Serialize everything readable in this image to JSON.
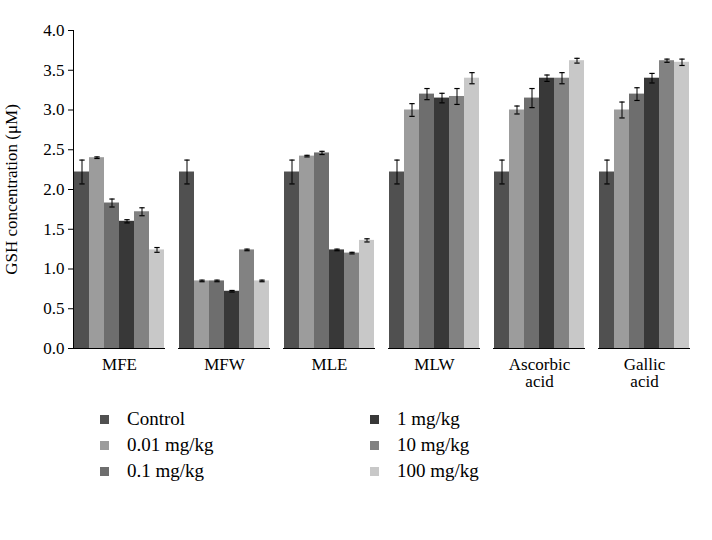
{
  "chart_data": {
    "type": "bar",
    "ylabel": "GSH concentration (μM)",
    "categories": [
      "MFE",
      "MFW",
      "MLE",
      "MLW",
      "Ascorbic acid",
      "Gallic acid"
    ],
    "series": [
      {
        "name": "Control",
        "color": "#505050",
        "values": [
          2.22,
          2.22,
          2.22,
          2.22,
          2.22,
          2.22
        ],
        "errors": [
          0.15,
          0.15,
          0.15,
          0.15,
          0.15,
          0.15
        ]
      },
      {
        "name": "0.01 mg/kg",
        "color": "#9c9c9c",
        "values": [
          2.4,
          0.85,
          2.42,
          3.0,
          3.0,
          3.0
        ],
        "errors": [
          0.01,
          0.01,
          0.01,
          0.08,
          0.05,
          0.1
        ]
      },
      {
        "name": "0.1 mg/kg",
        "color": "#6e6e6e",
        "values": [
          1.83,
          0.85,
          2.46,
          3.2,
          3.15,
          3.2
        ],
        "errors": [
          0.05,
          0.01,
          0.02,
          0.07,
          0.12,
          0.08
        ]
      },
      {
        "name": "1 mg/kg",
        "color": "#383838",
        "values": [
          1.6,
          0.72,
          1.24,
          3.15,
          3.4,
          3.4
        ],
        "errors": [
          0.02,
          0.01,
          0.01,
          0.06,
          0.04,
          0.06
        ]
      },
      {
        "name": "10 mg/kg",
        "color": "#828282",
        "values": [
          1.72,
          1.24,
          1.2,
          3.17,
          3.4,
          3.62
        ],
        "errors": [
          0.05,
          0.01,
          0.01,
          0.1,
          0.07,
          0.02
        ]
      },
      {
        "name": "100 mg/kg",
        "color": "#c8c8c8",
        "values": [
          1.24,
          0.85,
          1.36,
          3.4,
          3.62,
          3.6
        ],
        "errors": [
          0.03,
          0.01,
          0.02,
          0.07,
          0.03,
          0.04
        ]
      }
    ],
    "ylim": [
      0,
      4
    ],
    "yticks": [
      0,
      0.5,
      1,
      1.5,
      2,
      2.5,
      3,
      3.5,
      4
    ],
    "grid": false,
    "legend": "bottom"
  }
}
